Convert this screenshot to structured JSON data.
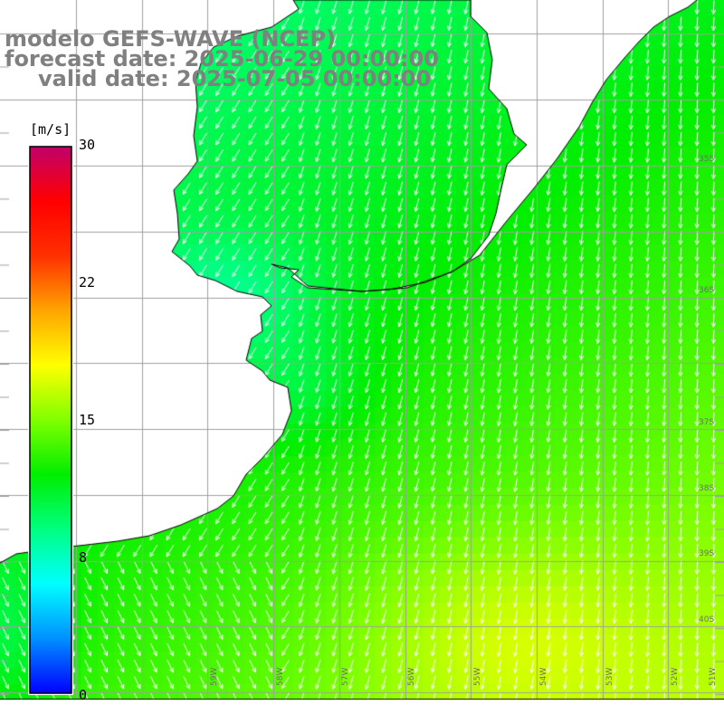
{
  "title": {
    "model": "modelo GEFS-WAVE (NCEP)",
    "forecast": "forecast date: 2025-06-29 00:00:00",
    "valid": "valid date: 2025-07-05 00:00:00"
  },
  "colorbar": {
    "unit": "[m/s]",
    "min": 0,
    "max": 30,
    "ticks": [
      "30",
      "22",
      "15",
      "8",
      "0"
    ],
    "tick_values": [
      30,
      22,
      15,
      8,
      0
    ],
    "stops": [
      "#0000ff",
      "#0090ff",
      "#00ffff",
      "#00ff80",
      "#00ee00",
      "#80ff00",
      "#ffff00",
      "#ffa500",
      "#ff3000",
      "#ff0000",
      "#c0006a"
    ]
  },
  "map": {
    "field": "wind speed",
    "land_color": "#ffffff",
    "coast_color": "#000000",
    "grid_color": "#a0a0a0",
    "lon_labels": [
      "59W",
      "58W",
      "57W",
      "56W",
      "55W",
      "54W",
      "53W",
      "52W",
      "51W"
    ],
    "lat_labels": [
      "35S",
      "36S",
      "37S",
      "38S",
      "39S",
      "40S"
    ]
  }
}
